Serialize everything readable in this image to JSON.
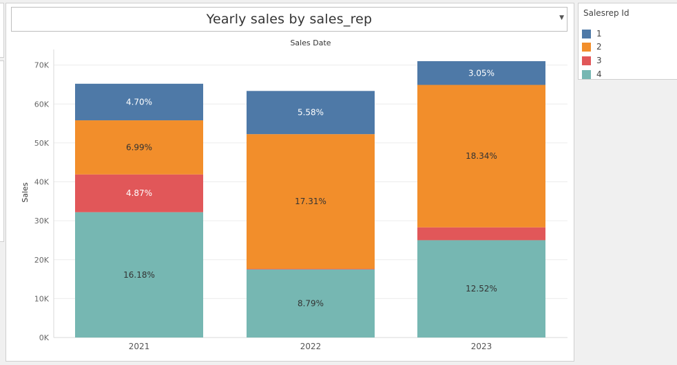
{
  "title": "Yearly sales by sales_rep",
  "legend": {
    "title": "Salesrep Id",
    "items": [
      {
        "label": "1",
        "color": "#4e79a7"
      },
      {
        "label": "2",
        "color": "#f28e2b"
      },
      {
        "label": "3",
        "color": "#e15759"
      },
      {
        "label": "4",
        "color": "#76b7b2"
      }
    ]
  },
  "chart_data": {
    "type": "bar",
    "stacked": true,
    "title": "Yearly sales by sales_rep",
    "xlabel": "Sales Date",
    "ylabel": "Sales",
    "categories": [
      "2021",
      "2022",
      "2023"
    ],
    "ylim": [
      0,
      74000
    ],
    "yticks": [
      0,
      10000,
      20000,
      30000,
      40000,
      50000,
      60000,
      70000
    ],
    "ytick_labels": [
      "0K",
      "10K",
      "20K",
      "30K",
      "40K",
      "50K",
      "60K",
      "70K"
    ],
    "grid": true,
    "legend_position": "right",
    "series": [
      {
        "name": "4",
        "color": "#76b7b2",
        "values": [
          32200,
          17500,
          25000
        ],
        "labels": [
          "16.18%",
          "8.79%",
          "12.52%"
        ]
      },
      {
        "name": "3",
        "color": "#e15759",
        "values": [
          9700,
          150,
          3300
        ],
        "labels": [
          "4.87%",
          "",
          ""
        ]
      },
      {
        "name": "2",
        "color": "#f28e2b",
        "values": [
          13900,
          34600,
          36600
        ],
        "labels": [
          "6.99%",
          "17.31%",
          "18.34%"
        ]
      },
      {
        "name": "1",
        "color": "#4e79a7",
        "values": [
          9400,
          11100,
          6100
        ],
        "labels": [
          "4.70%",
          "5.58%",
          "3.05%"
        ]
      }
    ]
  }
}
